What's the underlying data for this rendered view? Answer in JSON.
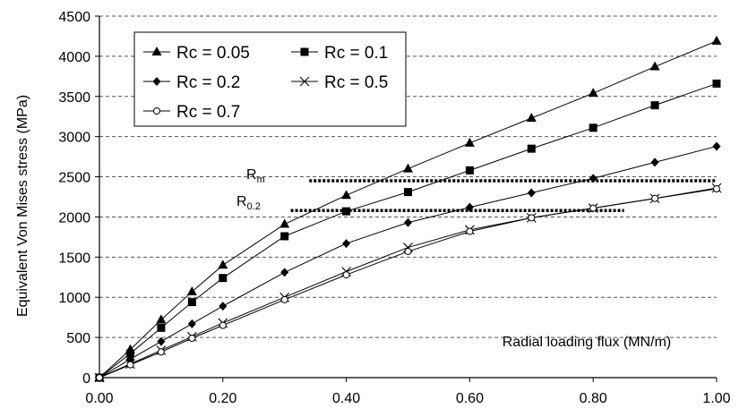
{
  "chart_data": {
    "type": "line",
    "title": "",
    "xlabel": "Radial loading flux (MN/m)",
    "ylabel": "Equivalent Von Mises stress (MPa)",
    "xlim": [
      0,
      1
    ],
    "ylim": [
      0,
      4500
    ],
    "x_ticks": [
      "0.00",
      "0.20",
      "0.40",
      "0.60",
      "0.80",
      "1.00"
    ],
    "y_ticks": [
      "0",
      "500",
      "1000",
      "1500",
      "2000",
      "2500",
      "3000",
      "3500",
      "4000",
      "4500"
    ],
    "grid": "horizontal dashed",
    "legend_position": "top-left",
    "x": [
      0,
      0.05,
      0.1,
      0.15,
      0.2,
      0.3,
      0.4,
      0.5,
      0.6,
      0.7,
      0.8,
      0.9,
      1.0
    ],
    "series": [
      {
        "name": "Rc = 0.05",
        "marker": "triangle",
        "values": [
          0,
          350,
          720,
          1070,
          1400,
          1910,
          2270,
          2600,
          2920,
          3230,
          3540,
          3870,
          4190
        ]
      },
      {
        "name": "Rc = 0.1",
        "marker": "square",
        "values": [
          0,
          300,
          620,
          940,
          1240,
          1760,
          2070,
          2310,
          2580,
          2850,
          3110,
          3390,
          3660
        ]
      },
      {
        "name": "Rc = 0.2",
        "marker": "diamond",
        "values": [
          0,
          230,
          450,
          670,
          890,
          1310,
          1670,
          1930,
          2120,
          2300,
          2480,
          2680,
          2880
        ]
      },
      {
        "name": "Rc = 0.5",
        "marker": "x",
        "values": [
          0,
          170,
          340,
          510,
          680,
          1000,
          1320,
          1620,
          1840,
          1990,
          2110,
          2230,
          2360
        ]
      },
      {
        "name": "Rc = 0.7",
        "marker": "circle",
        "values": [
          0,
          160,
          320,
          490,
          650,
          970,
          1280,
          1570,
          1820,
          1990,
          2110,
          2230,
          2350
        ]
      }
    ],
    "annotations": [
      {
        "label": "R",
        "subscript": "m",
        "y": 2450,
        "x_start": 0.34,
        "x_end": 1.0
      },
      {
        "label": "R",
        "subscript": "0.2",
        "y": 2080,
        "x_start": 0.31,
        "x_end": 0.85
      }
    ]
  }
}
